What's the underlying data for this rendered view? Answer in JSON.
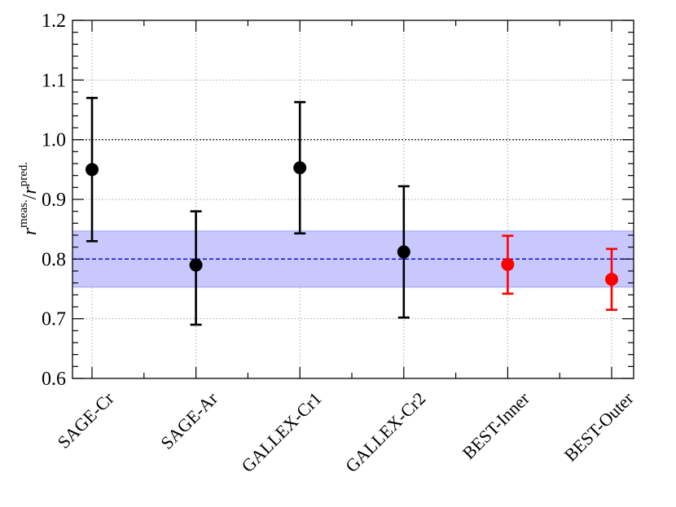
{
  "chart_data": {
    "type": "scatter",
    "title": "",
    "xlabel": "",
    "ylabel": {
      "r1": "r",
      "sup1": "meas.",
      "slash": "/",
      "r2": "r",
      "sup2": "pred."
    },
    "ylim": [
      0.6,
      1.2
    ],
    "yticks": [
      0.6,
      0.7,
      0.8,
      0.9,
      1.0,
      1.1,
      1.2
    ],
    "ytick_labels": [
      "0.6",
      "0.7",
      "0.8",
      "0.9",
      "1.0",
      "1.1",
      "1.2"
    ],
    "categories": [
      "SAGE-Cr",
      "SAGE-Ar",
      "GALLEX-Cr1",
      "GALLEX-Cr2",
      "BEST-Inner",
      "BEST-Outer"
    ],
    "points": [
      {
        "category": "SAGE-Cr",
        "y": 0.95,
        "low": 0.83,
        "high": 1.07,
        "color": "#000000"
      },
      {
        "category": "SAGE-Ar",
        "y": 0.79,
        "low": 0.69,
        "high": 0.88,
        "color": "#000000"
      },
      {
        "category": "GALLEX-Cr1",
        "y": 0.953,
        "low": 0.843,
        "high": 1.063,
        "color": "#000000"
      },
      {
        "category": "GALLEX-Cr2",
        "y": 0.812,
        "low": 0.702,
        "high": 0.922,
        "color": "#000000"
      },
      {
        "category": "BEST-Inner",
        "y": 0.791,
        "low": 0.742,
        "high": 0.839,
        "color": "#ff0000"
      },
      {
        "category": "BEST-Outer",
        "y": 0.766,
        "low": 0.715,
        "high": 0.817,
        "color": "#ff0000"
      }
    ],
    "reference_line": {
      "y": 1.0,
      "style": "dotted",
      "color": "#000000"
    },
    "combined_band": {
      "center": 0.8,
      "low": 0.753,
      "high": 0.847,
      "fill": "#c8c8ff",
      "edge": "#a0a0f0",
      "line_color": "#0000cc"
    },
    "grid": true
  }
}
